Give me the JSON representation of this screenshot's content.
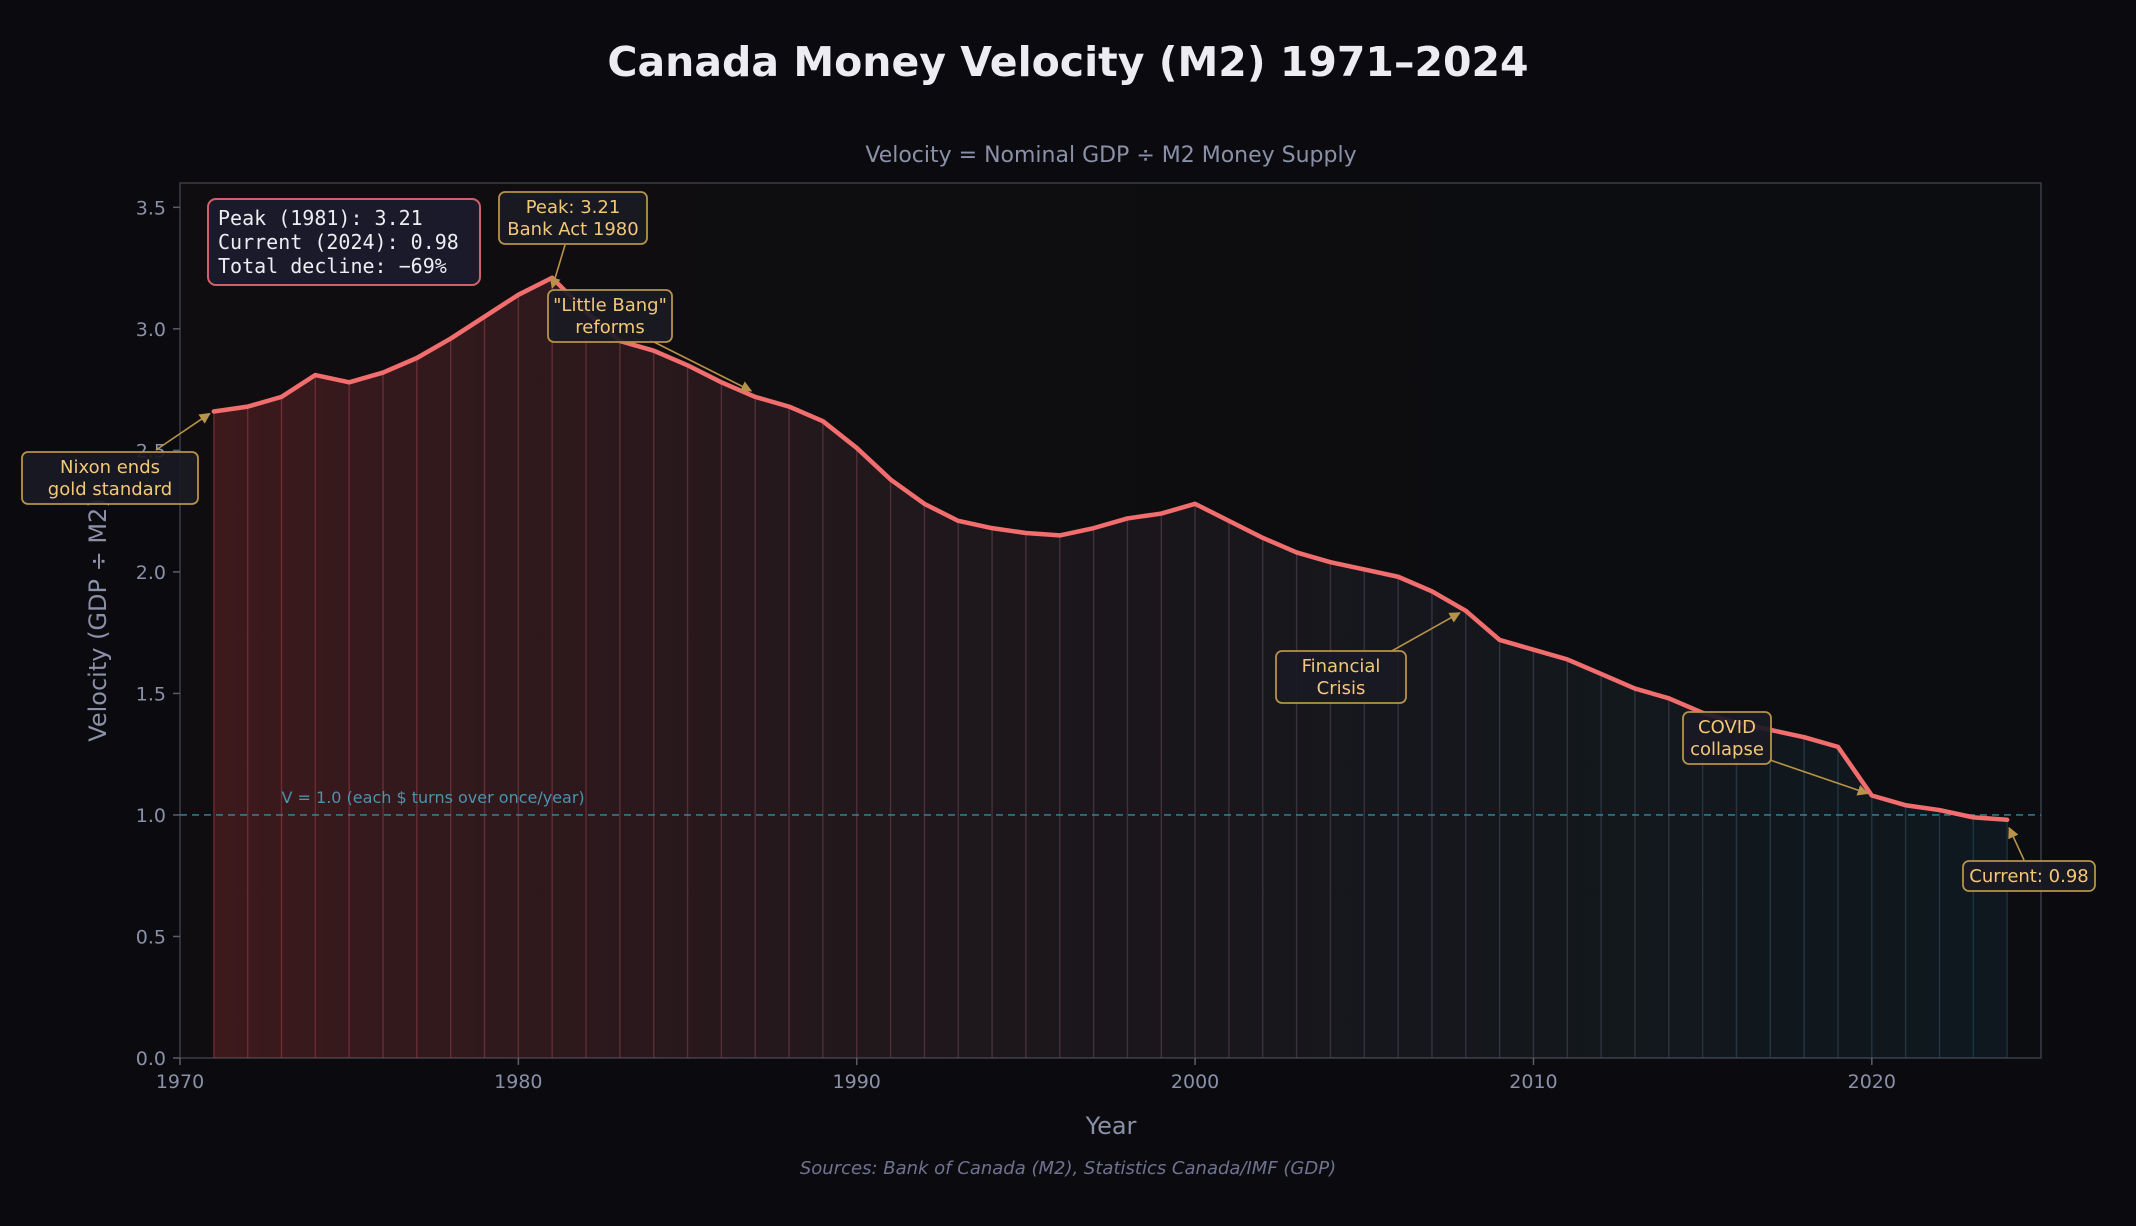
{
  "chart_data": {
    "type": "area",
    "title": "Canada Money Velocity (M2) 1971–2024",
    "subtitle": "Velocity = Nominal GDP ÷ M2 Money Supply",
    "xlabel": "Year",
    "ylabel": "Velocity (GDP ÷ M2)",
    "xlim": [
      1970,
      2025
    ],
    "ylim": [
      0,
      3.6
    ],
    "x_ticks": [
      "1970",
      "1980",
      "1990",
      "2000",
      "2010",
      "2020"
    ],
    "y_ticks": [
      "0.0",
      "0.5",
      "1.0",
      "1.5",
      "2.0",
      "2.5",
      "3.0",
      "3.5"
    ],
    "source": "Sources: Bank of Canada (M2), Statistics Canada/IMF (GDP)",
    "series": [
      {
        "name": "Money Velocity (M2)",
        "x": [
          1971,
          1972,
          1973,
          1974,
          1975,
          1976,
          1977,
          1978,
          1979,
          1980,
          1981,
          1982,
          1983,
          1984,
          1985,
          1986,
          1987,
          1988,
          1989,
          1990,
          1991,
          1992,
          1993,
          1994,
          1995,
          1996,
          1997,
          1998,
          1999,
          2000,
          2001,
          2002,
          2003,
          2004,
          2005,
          2006,
          2007,
          2008,
          2009,
          2010,
          2011,
          2012,
          2013,
          2014,
          2015,
          2016,
          2017,
          2018,
          2019,
          2020,
          2021,
          2022,
          2023,
          2024
        ],
        "values": [
          2.66,
          2.68,
          2.72,
          2.81,
          2.78,
          2.82,
          2.88,
          2.96,
          3.05,
          3.14,
          3.21,
          3.07,
          2.95,
          2.91,
          2.85,
          2.78,
          2.72,
          2.68,
          2.62,
          2.51,
          2.38,
          2.28,
          2.21,
          2.18,
          2.16,
          2.15,
          2.18,
          2.22,
          2.24,
          2.28,
          2.21,
          2.14,
          2.08,
          2.04,
          2.01,
          1.98,
          1.92,
          1.84,
          1.72,
          1.68,
          1.64,
          1.58,
          1.52,
          1.48,
          1.42,
          1.38,
          1.35,
          1.32,
          1.28,
          1.08,
          1.04,
          1.02,
          0.99,
          0.98
        ]
      }
    ],
    "reference_line": {
      "y": 1.0,
      "label": "V = 1.0 (each $ turns over once/year)"
    },
    "stats_box": [
      "Peak (1981): 3.21",
      "Current (2024): 0.98",
      "Total decline: −69%"
    ],
    "annotations": [
      {
        "id": "nixon",
        "text": [
          "Nixon ends",
          "gold standard"
        ],
        "x": 1971,
        "y": 2.66
      },
      {
        "id": "peak",
        "text": [
          "Peak: 3.21",
          "Bank Act 1980"
        ],
        "x": 1981,
        "y": 3.21
      },
      {
        "id": "littlebang",
        "text": [
          "\"Little Bang\"",
          "reforms"
        ],
        "x": 1987,
        "y": 2.72
      },
      {
        "id": "crisis",
        "text": [
          "Financial",
          "Crisis"
        ],
        "x": 2008,
        "y": 1.84
      },
      {
        "id": "covid",
        "text": [
          "COVID",
          "collapse"
        ],
        "x": 2020,
        "y": 1.08
      },
      {
        "id": "current",
        "text": [
          "Current: 0.98"
        ],
        "x": 2024,
        "y": 0.98
      }
    ],
    "colors": {
      "background": "#0b0b0f",
      "plot_bg": "#0d0d11",
      "line": "#f26d6d",
      "fill_start": "#f04848",
      "fill_end": "#2a8aa8",
      "reference": "#3f8fa8",
      "annotation_text": "#f3c877",
      "annotation_border": "#b6924a",
      "annotation_bg": "#1a1a24",
      "stats_border": "#d2606a",
      "stats_text": "#ececf2",
      "axis_text": "#8a90a8"
    }
  }
}
